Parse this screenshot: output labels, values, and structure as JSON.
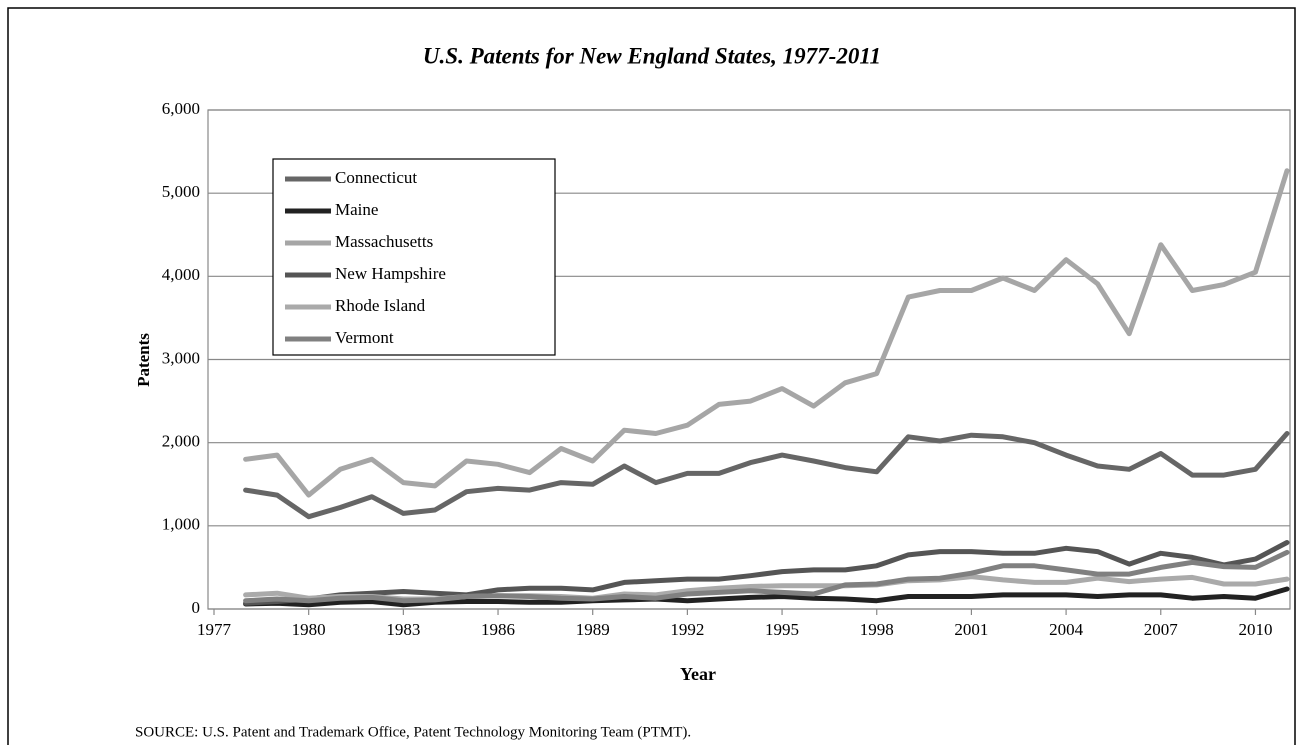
{
  "chart_data": {
    "type": "line",
    "title": "U.S. Patents for New England States, 1977-2011",
    "x_label": "Year",
    "y_label": "Patents",
    "source": "SOURCE: U.S. Patent and Trademark Office, Patent Technology Monitoring Team (PTMT).",
    "x": [
      1978,
      1979,
      1980,
      1981,
      1982,
      1983,
      1984,
      1985,
      1986,
      1987,
      1988,
      1989,
      1990,
      1991,
      1992,
      1993,
      1994,
      1995,
      1996,
      1997,
      1998,
      1999,
      2000,
      2001,
      2002,
      2003,
      2004,
      2005,
      2006,
      2007,
      2008,
      2009,
      2010,
      2011
    ],
    "xlim": [
      1977,
      2011
    ],
    "xticks": [
      1977,
      1980,
      1983,
      1986,
      1989,
      1992,
      1995,
      1998,
      2001,
      2004,
      2007,
      2010
    ],
    "ylim": [
      0,
      6000
    ],
    "yticks": [
      0,
      {
        "value": 1000,
        "label": "1,000"
      },
      {
        "value": 2000,
        "label": "2,000"
      },
      {
        "value": 3000,
        "label": "3,000"
      },
      {
        "value": 4000,
        "label": "4,000"
      },
      {
        "value": 5000,
        "label": "5,000"
      },
      {
        "value": 6000,
        "label": "6,000"
      }
    ],
    "grid": true,
    "legend": "upper left",
    "series": [
      {
        "name": "Connecticut",
        "color": "#666666",
        "values": [
          1430,
          1370,
          1110,
          1220,
          1350,
          1150,
          1190,
          1410,
          1450,
          1430,
          1520,
          1500,
          1720,
          1520,
          1630,
          1630,
          1760,
          1850,
          1780,
          1700,
          1650,
          2070,
          2020,
          2090,
          2070,
          2000,
          1850,
          1720,
          1680,
          1870,
          1610,
          1610,
          1680,
          2110
        ]
      },
      {
        "name": "Maine",
        "color": "#222222",
        "values": [
          60,
          70,
          50,
          80,
          90,
          50,
          80,
          90,
          90,
          80,
          80,
          100,
          110,
          120,
          100,
          120,
          140,
          150,
          130,
          120,
          100,
          150,
          150,
          150,
          170,
          170,
          170,
          150,
          170,
          170,
          130,
          150,
          130,
          240
        ]
      },
      {
        "name": "Massachusetts",
        "color": "#a6a6a6",
        "values": [
          1800,
          1850,
          1370,
          1680,
          1800,
          1520,
          1480,
          1780,
          1740,
          1640,
          1930,
          1780,
          2150,
          2110,
          2210,
          2460,
          2500,
          2650,
          2440,
          2720,
          2830,
          3750,
          3830,
          3830,
          3980,
          3830,
          4200,
          3910,
          3310,
          4380,
          3830,
          3900,
          4050,
          5270
        ]
      },
      {
        "name": "New Hampshire",
        "color": "#555555",
        "values": [
          70,
          90,
          120,
          170,
          190,
          210,
          190,
          170,
          230,
          250,
          250,
          230,
          320,
          340,
          360,
          360,
          400,
          450,
          470,
          470,
          520,
          650,
          690,
          690,
          670,
          670,
          730,
          690,
          540,
          670,
          620,
          530,
          600,
          800
        ]
      },
      {
        "name": "Rhode Island",
        "color": "#aaaaaa",
        "values": [
          170,
          190,
          130,
          150,
          150,
          120,
          120,
          150,
          160,
          160,
          150,
          130,
          180,
          170,
          220,
          250,
          270,
          280,
          280,
          280,
          290,
          340,
          350,
          390,
          350,
          320,
          320,
          370,
          330,
          360,
          380,
          300,
          300,
          360
        ]
      },
      {
        "name": "Vermont",
        "color": "#808080",
        "values": [
          100,
          120,
          100,
          130,
          140,
          100,
          110,
          150,
          160,
          150,
          130,
          120,
          150,
          130,
          180,
          200,
          220,
          200,
          180,
          290,
          300,
          360,
          370,
          430,
          520,
          520,
          470,
          420,
          420,
          500,
          560,
          510,
          500,
          680
        ]
      }
    ]
  }
}
